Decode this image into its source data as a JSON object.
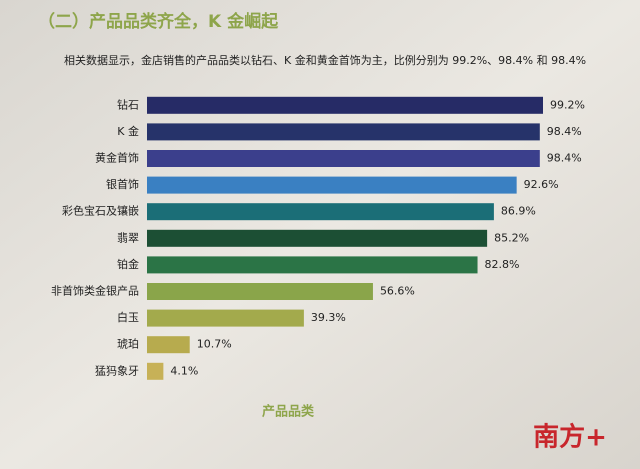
{
  "chart_data": {
    "type": "bar",
    "orientation": "horizontal",
    "title": "（二）产品品类齐全，K 金崛起",
    "subtitle": "相关数据显示，金店销售的产品品类以钻石、K 金和黄金首饰为主，比例分别为 99.2%、98.4% 和 98.4%",
    "x_label": "产品品类",
    "categories": [
      "钻石",
      "K 金",
      "黄金首饰",
      "银首饰",
      "彩色宝石及镶嵌",
      "翡翠",
      "铂金",
      "非首饰类金银产品",
      "白玉",
      "琥珀",
      "猛犸象牙"
    ],
    "values": [
      99.2,
      98.4,
      98.4,
      92.6,
      86.9,
      85.2,
      82.8,
      56.6,
      39.3,
      10.7,
      4.1
    ],
    "value_labels": [
      "99.2%",
      "98.4%",
      "98.4%",
      "92.6%",
      "86.9%",
      "85.2%",
      "82.8%",
      "56.6%",
      "39.3%",
      "10.7%",
      "4.1%"
    ],
    "colors": [
      "#262b66",
      "#26336a",
      "#3b3f8c",
      "#3a80c2",
      "#1b6e77",
      "#1c4f34",
      "#2b7446",
      "#8aa54a",
      "#a3aa4c",
      "#b7ab4e",
      "#c7b157"
    ]
  },
  "watermark": "南方+"
}
